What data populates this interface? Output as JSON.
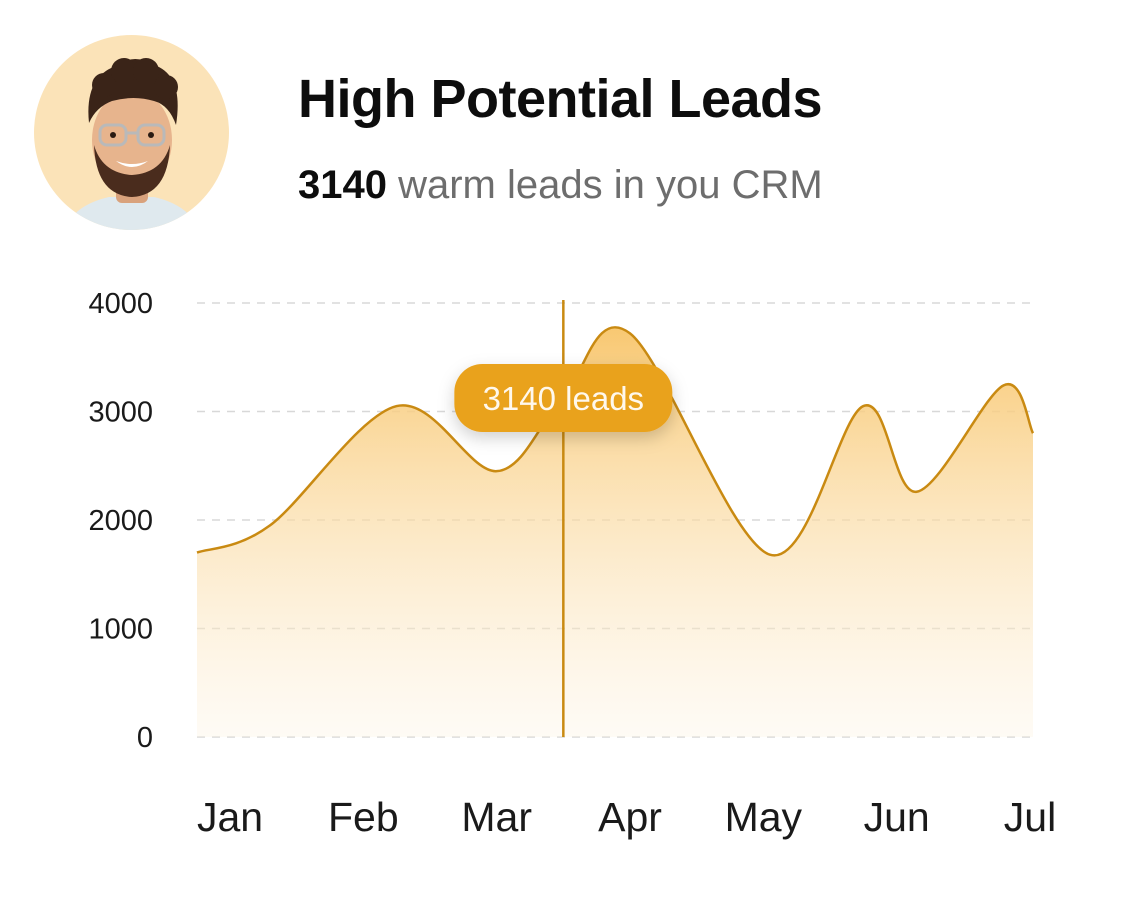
{
  "header": {
    "title": "High Potential Leads",
    "count": "3140",
    "subtitle_rest": " warm leads in you CRM"
  },
  "avatar": {
    "icon": "person-photo",
    "background": "#fbe3b8"
  },
  "colors": {
    "accent": "#e9a21f",
    "line": "#c98a12",
    "area_top": "#f9cf7e",
    "grid": "#d8d8d8"
  },
  "tooltip": {
    "label": "3140 leads"
  },
  "chart_data": {
    "type": "area",
    "title": "",
    "xlabel": "",
    "ylabel": "",
    "ylim": [
      0,
      4000
    ],
    "y_ticks": [
      "0",
      "1000",
      "2000",
      "3000",
      "4000"
    ],
    "categories": [
      "Jan",
      "Feb",
      "Mar",
      "Apr",
      "May",
      "Jun",
      "Jul"
    ],
    "x": [
      0,
      0.3,
      1.25,
      2.0,
      2.5,
      3.0,
      4.05,
      4.75,
      5.15,
      5.8,
      6.15
    ],
    "y": [
      1700,
      1950,
      3050,
      2450,
      3140,
      3720,
      1680,
      3050,
      2260,
      3240,
      2800
    ],
    "highlight": {
      "x": 2.5,
      "value": 3140
    },
    "grid": true,
    "grid_style": "dashed"
  }
}
